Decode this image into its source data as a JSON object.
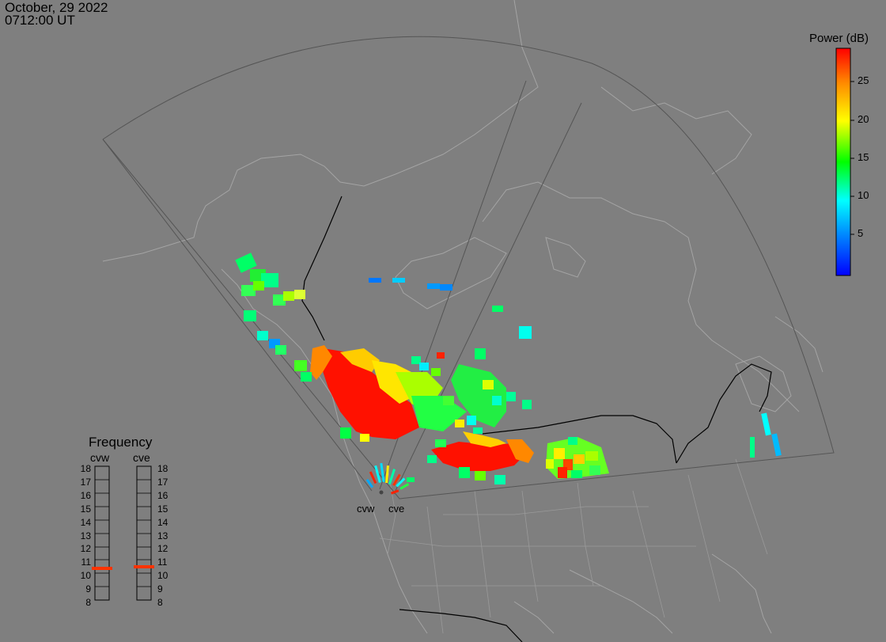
{
  "header": {
    "date": "October, 29 2022",
    "time": "0712:00 UT"
  },
  "colorbar": {
    "title": "Power (dB)",
    "ticks": [
      "25",
      "20",
      "15",
      "10",
      "5"
    ],
    "range": [
      0,
      29
    ]
  },
  "frequency_panel": {
    "title": "Frequency",
    "radars": [
      {
        "name": "cvw",
        "current": 10.5,
        "color": "#ff3300"
      },
      {
        "name": "cve",
        "current": 10.5,
        "color": "#ff3300"
      }
    ],
    "scale": [
      "18",
      "17",
      "16",
      "15",
      "14",
      "13",
      "12",
      "11",
      "10",
      "9",
      "8"
    ]
  },
  "radar_sites": [
    "cvw",
    "cve"
  ],
  "colors": {
    "background": "#7f7f7f",
    "coast": "#a6a6a6",
    "fov": "#555555",
    "border": "#000000"
  }
}
